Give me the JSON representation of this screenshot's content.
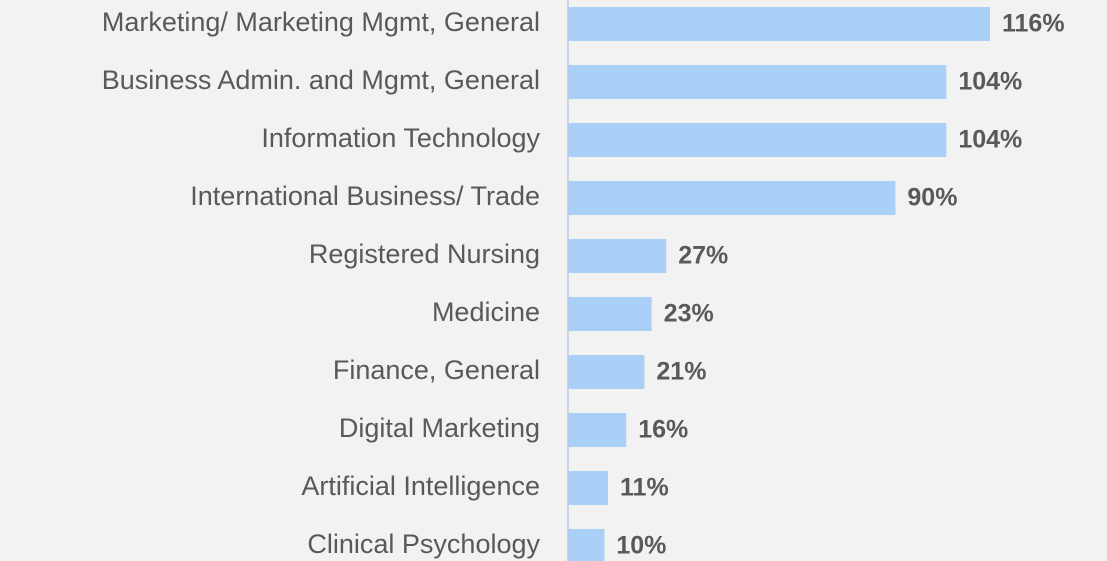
{
  "chart_data": {
    "type": "bar",
    "orientation": "horizontal",
    "categories": [
      "Marketing/ Marketing Mgmt, General",
      "Business Admin. and Mgmt, General",
      "Information Technology",
      "International Business/ Trade",
      "Registered Nursing",
      "Medicine",
      "Finance, General",
      "Digital Marketing",
      "Artificial Intelligence",
      "Clinical Psychology"
    ],
    "values": [
      116,
      104,
      104,
      90,
      27,
      23,
      21,
      16,
      11,
      10
    ],
    "value_labels": [
      "116%",
      "104%",
      "104%",
      "90%",
      "27%",
      "23%",
      "21%",
      "16%",
      "11%",
      "10%"
    ],
    "color": "#abd0f7"
  }
}
